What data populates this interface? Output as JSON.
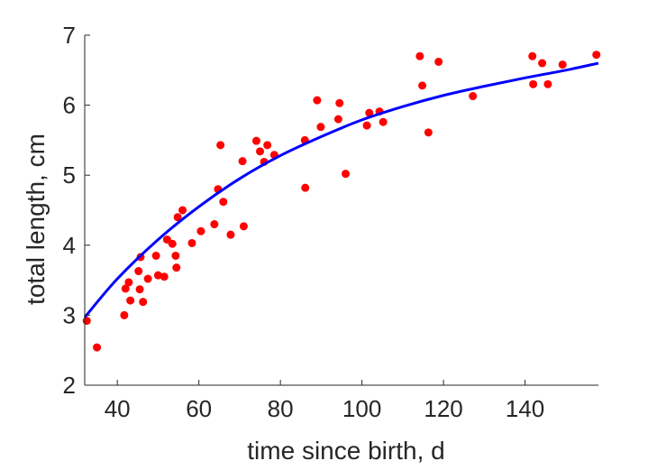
{
  "chart_data": {
    "type": "scatter",
    "title": "",
    "xlabel": "time since birth, d",
    "ylabel": "total length, cm",
    "xlim": [
      32,
      158
    ],
    "ylim": [
      2,
      7
    ],
    "xticks": [
      40,
      60,
      80,
      100,
      120,
      140
    ],
    "yticks": [
      2,
      3,
      4,
      5,
      6,
      7
    ],
    "grid": false,
    "legend": "none",
    "series": [
      {
        "kind": "points",
        "color": "#ff0000",
        "points": [
          [
            32.5,
            2.92
          ],
          [
            35,
            2.54
          ],
          [
            41.7,
            3.0
          ],
          [
            42,
            3.38
          ],
          [
            42.8,
            3.47
          ],
          [
            43.2,
            3.21
          ],
          [
            45.2,
            3.63
          ],
          [
            45.5,
            3.37
          ],
          [
            45.7,
            3.83
          ],
          [
            46.3,
            3.19
          ],
          [
            47.5,
            3.52
          ],
          [
            49.5,
            3.85
          ],
          [
            50,
            3.57
          ],
          [
            51.5,
            3.55
          ],
          [
            52.2,
            4.08
          ],
          [
            53.5,
            4.02
          ],
          [
            54.3,
            3.85
          ],
          [
            54.5,
            3.68
          ],
          [
            54.8,
            4.4
          ],
          [
            56,
            4.5
          ],
          [
            58.3,
            4.03
          ],
          [
            60.5,
            4.2
          ],
          [
            63.8,
            4.3
          ],
          [
            64.7,
            4.8
          ],
          [
            65.3,
            5.43
          ],
          [
            66,
            4.62
          ],
          [
            67.8,
            4.15
          ],
          [
            70.7,
            5.2
          ],
          [
            71,
            4.27
          ],
          [
            74.1,
            5.49
          ],
          [
            75,
            5.34
          ],
          [
            76,
            5.19
          ],
          [
            76.8,
            5.43
          ],
          [
            78.5,
            5.29
          ],
          [
            86,
            5.5
          ],
          [
            86.1,
            4.82
          ],
          [
            89,
            6.07
          ],
          [
            89.9,
            5.69
          ],
          [
            94.2,
            5.8
          ],
          [
            94.5,
            6.03
          ],
          [
            96,
            5.02
          ],
          [
            101.2,
            5.71
          ],
          [
            101.8,
            5.89
          ],
          [
            104.3,
            5.91
          ],
          [
            105.2,
            5.76
          ],
          [
            114.2,
            6.7
          ],
          [
            114.8,
            6.28
          ],
          [
            116.3,
            5.61
          ],
          [
            118.8,
            6.62
          ],
          [
            127.2,
            6.13
          ],
          [
            141.8,
            6.7
          ],
          [
            142,
            6.3
          ],
          [
            144.2,
            6.6
          ],
          [
            145.6,
            6.3
          ],
          [
            149.2,
            6.58
          ],
          [
            157.5,
            6.72
          ]
        ]
      },
      {
        "kind": "line",
        "color": "#0000ff",
        "points": [
          [
            32,
            2.97
          ],
          [
            40,
            3.52
          ],
          [
            50,
            4.08
          ],
          [
            60,
            4.55
          ],
          [
            70,
            4.95
          ],
          [
            80,
            5.28
          ],
          [
            90,
            5.55
          ],
          [
            100,
            5.79
          ],
          [
            110,
            5.98
          ],
          [
            120,
            6.14
          ],
          [
            130,
            6.27
          ],
          [
            140,
            6.39
          ],
          [
            150,
            6.5
          ],
          [
            158,
            6.6
          ]
        ]
      }
    ]
  }
}
